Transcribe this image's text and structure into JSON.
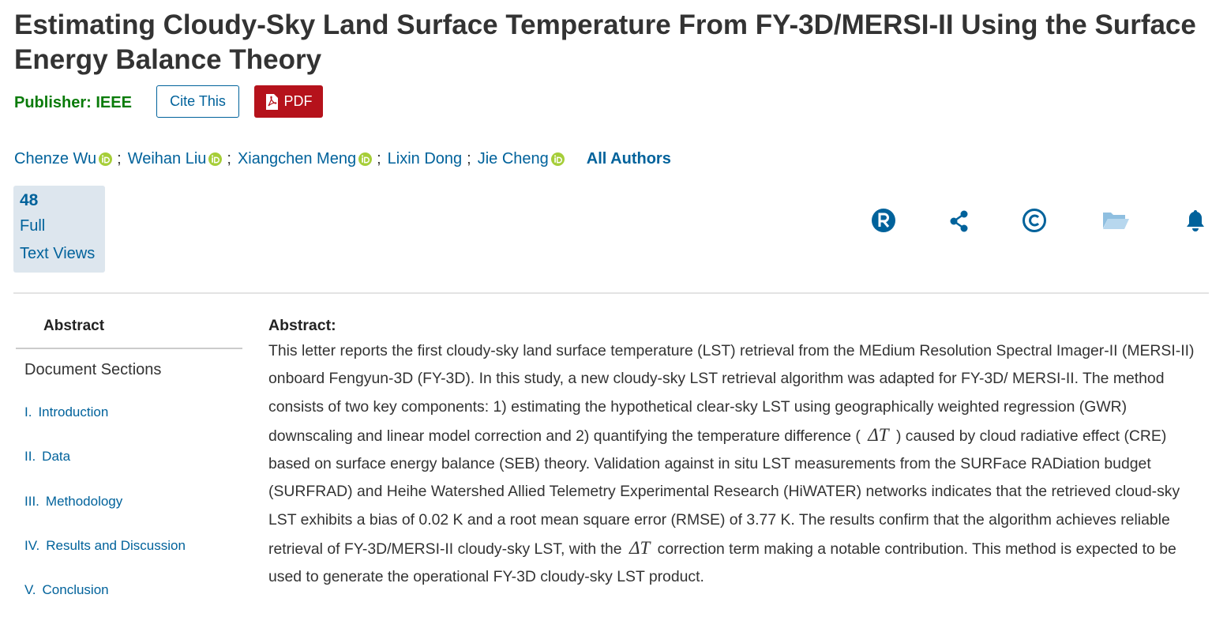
{
  "title": "Estimating Cloudy-Sky Land Surface Temperature From FY-3D/MERSI-II Using the Surface Energy Balance Theory",
  "publisher": {
    "label": "Publisher:",
    "name": "IEEE"
  },
  "buttons": {
    "cite": "Cite This",
    "pdf": "PDF"
  },
  "authors": {
    "names": [
      "Chenze Wu",
      "Weihan Liu",
      "Xiangchen Meng",
      "Lixin Dong",
      "Jie Cheng"
    ],
    "orcid": [
      true,
      true,
      true,
      false,
      true
    ],
    "separator": ";",
    "all": "All Authors"
  },
  "metrics": {
    "count": 48,
    "line1": "Full",
    "line2": "Text Views"
  },
  "nav": {
    "active": "Abstract",
    "heading": "Document Sections",
    "sections": [
      {
        "num": "I.",
        "title": "Introduction"
      },
      {
        "num": "II.",
        "title": "Data"
      },
      {
        "num": "III.",
        "title": "Methodology"
      },
      {
        "num": "IV.",
        "title": "Results and Discussion"
      },
      {
        "num": "V.",
        "title": "Conclusion"
      }
    ]
  },
  "abstract": {
    "heading": "Abstract:",
    "segments": [
      "This letter reports the first cloudy-sky land surface temperature (LST) retrieval from the MEdium Resolution Spectral Imager-II (MERSI-II) onboard Fengyun-3D (FY-3D). In this study, a new cloudy-sky LST retrieval algorithm was adapted for FY-3D/ MERSI-II. The method consists of two key components: 1) estimating the hypothetical clear-sky LST using geographically weighted regression (GWR) downscaling and linear model correction and 2) quantifying the temperature difference (",
      "ΔT",
      ") caused by cloud radiative effect (CRE) based on surface energy balance (SEB) theory. Validation against in situ LST measurements from the SURFace RADiation budget (SURFRAD) and Heihe Watershed Allied Telemetry Experimental Research (HiWATER) networks indicates that the retrieved cloud-sky LST exhibits a bias of 0.02 K and a root mean square error (RMSE) of 3.77 K. The results confirm that the algorithm achieves reliable retrieval of FY-3D/MERSI-II cloudy-sky LST, with the",
      "ΔT",
      "correction term making a notable contribution. This method is expected to be used to generate the operational FY-3D cloudy-sky LST product."
    ]
  }
}
